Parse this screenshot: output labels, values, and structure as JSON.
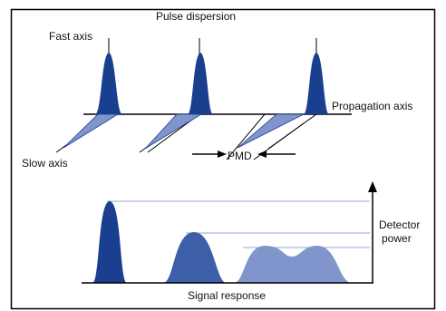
{
  "labels": {
    "fast_axis": "Fast axis",
    "pulse_dispersion": "Pulse dispersion",
    "propagation_axis": "Propagation axis",
    "slow_axis": "Slow axis",
    "pmd": "PMD",
    "detector_power_line1": "Detector",
    "detector_power_line2": "power",
    "signal_response": "Signal response"
  },
  "colors": {
    "pulse_dark": "#1b3f8f",
    "pulse_mid": "#3d5fa8",
    "pulse_light": "#7f95cc",
    "level_line": "#8fa8d8",
    "frame": "#000000"
  }
}
